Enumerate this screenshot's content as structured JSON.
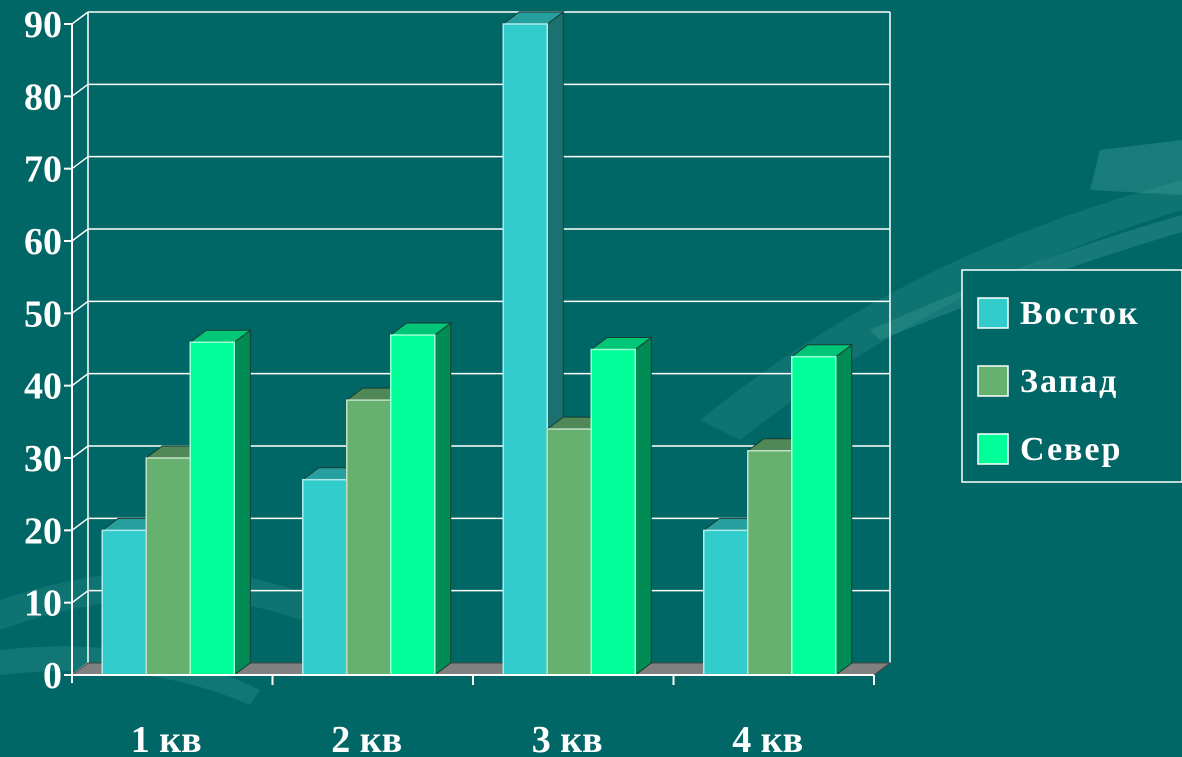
{
  "chart_data": {
    "type": "bar",
    "title": "",
    "xlabel": "",
    "ylabel": "",
    "categories": [
      "1 кв",
      "2 кв",
      "3 кв",
      "4 кв"
    ],
    "series": [
      {
        "name": "Восток",
        "values": [
          20,
          27,
          90,
          20
        ],
        "color": "#33cccc"
      },
      {
        "name": "Запад",
        "values": [
          30,
          38,
          34,
          31
        ],
        "color": "#66b070"
      },
      {
        "name": "Север",
        "values": [
          46,
          47,
          45,
          44
        ],
        "color": "#00ff99"
      }
    ],
    "ylim": [
      0,
      90
    ],
    "yticks": [
      "0",
      "10",
      "20",
      "30",
      "40",
      "50",
      "60",
      "70",
      "80",
      "90"
    ],
    "grid": true,
    "legend_position": "right",
    "style": "3d-clustered-bar"
  },
  "colors": {
    "background": "#006766",
    "axis": "#ffffff",
    "floor": "#808080"
  }
}
